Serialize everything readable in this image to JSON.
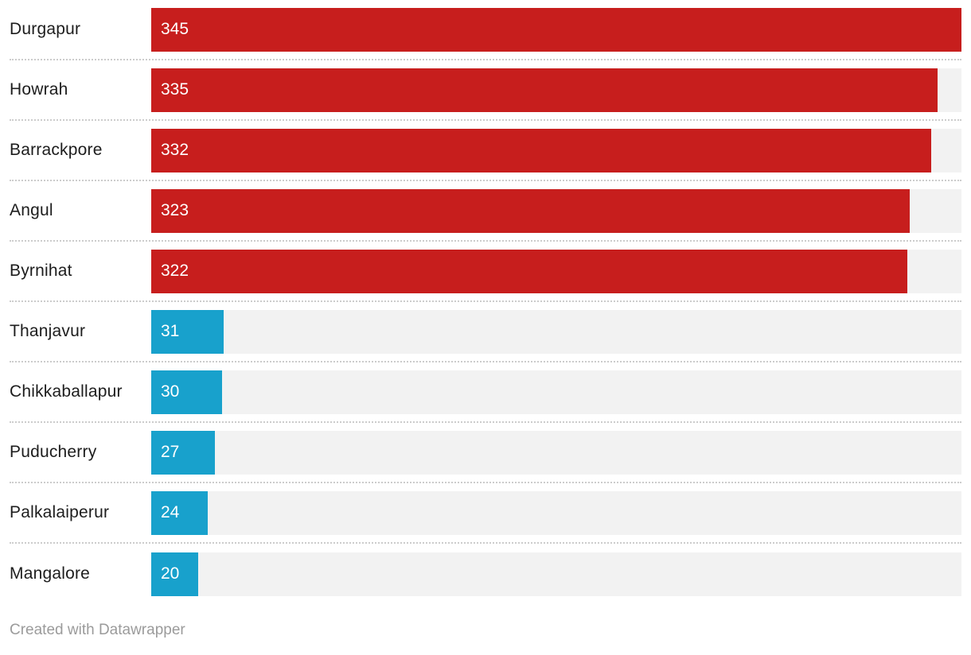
{
  "chart_data": {
    "type": "bar",
    "orientation": "horizontal",
    "xlim": [
      0,
      345
    ],
    "xmax": 345,
    "grid": false,
    "legend": "none",
    "colors": {
      "high": "#c71e1d",
      "low": "#18a1cc",
      "track": "#f2f2f2",
      "separator": "#cccccc",
      "value_text": "#ffffff",
      "label_text": "#1d1d1d"
    },
    "categories": [
      "Durgapur",
      "Howrah",
      "Barrackpore",
      "Angul",
      "Byrnihat",
      "Thanjavur",
      "Chikkaballapur",
      "Puducherry",
      "Palkalaiperur",
      "Mangalore"
    ],
    "values": [
      345,
      335,
      332,
      323,
      322,
      31,
      30,
      27,
      24,
      20
    ],
    "rows": [
      {
        "label": "Durgapur",
        "value": 345,
        "color": "high"
      },
      {
        "label": "Howrah",
        "value": 335,
        "color": "high"
      },
      {
        "label": "Barrackpore",
        "value": 332,
        "color": "high"
      },
      {
        "label": "Angul",
        "value": 323,
        "color": "high"
      },
      {
        "label": "Byrnihat",
        "value": 322,
        "color": "high"
      },
      {
        "label": "Thanjavur",
        "value": 31,
        "color": "low"
      },
      {
        "label": "Chikkaballapur",
        "value": 30,
        "color": "low"
      },
      {
        "label": "Puducherry",
        "value": 27,
        "color": "low"
      },
      {
        "label": "Palkalaiperur",
        "value": 24,
        "color": "low"
      },
      {
        "label": "Mangalore",
        "value": 20,
        "color": "low"
      }
    ]
  },
  "footer": {
    "credit": "Created with Datawrapper"
  }
}
